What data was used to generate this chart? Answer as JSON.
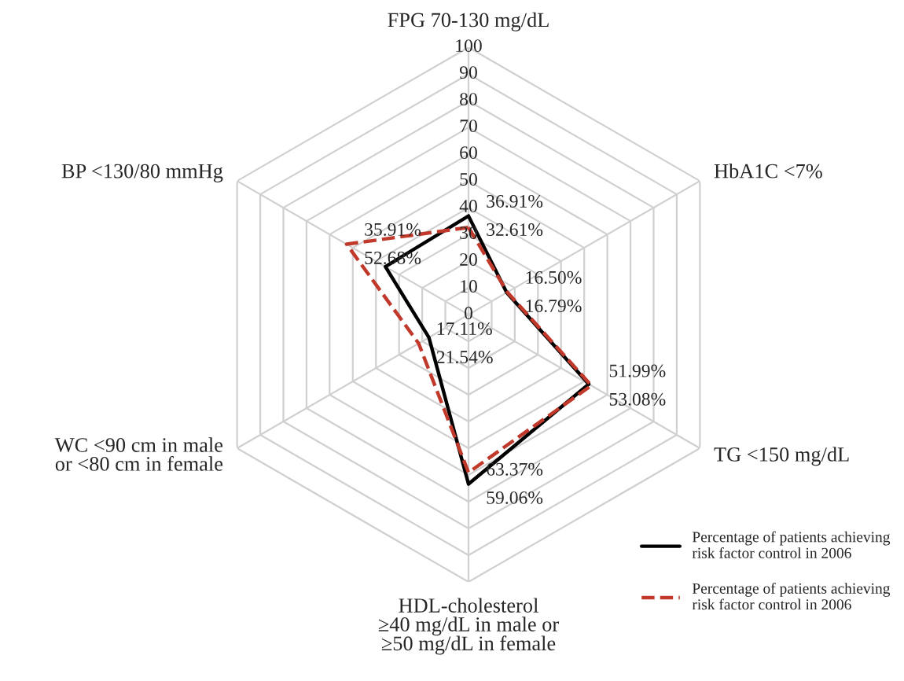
{
  "chart_data": {
    "type": "radar",
    "categories": [
      "FPG 70-130 mg/dL",
      "HbA1C <7%",
      "TG <150 mg/dL",
      "HDL-cholesterol\n≥40 mg/dL in male or\n≥50 mg/dL in female",
      "WC <90 cm in male\nor <80 cm in female",
      "BP <130/80 mmHg"
    ],
    "series": [
      {
        "name": "Percentage of patients achieving\nrisk factor control in 2006",
        "color": "#000000",
        "line_style": "solid",
        "values": [
          36.91,
          16.5,
          51.99,
          63.37,
          17.11,
          35.91
        ],
        "value_labels": [
          "36.91%",
          "16.50%",
          "51.99%",
          "63.37%",
          "17.11%",
          "35.91%"
        ]
      },
      {
        "name": "Percentage of patients achieving\nrisk factor control in 2006",
        "color": "#c0392b",
        "line_style": "dashed",
        "values": [
          32.61,
          16.79,
          53.08,
          59.06,
          21.54,
          52.68
        ],
        "value_labels": [
          "32.61%",
          "16.79%",
          "53.08%",
          "59.06%",
          "21.54%",
          "52.68%"
        ]
      }
    ],
    "ylim": [
      0,
      100
    ],
    "yticks": [
      0,
      10,
      20,
      30,
      40,
      50,
      60,
      70,
      80,
      90,
      100
    ],
    "grid": true,
    "legend": "bottom right",
    "marker": "none"
  }
}
